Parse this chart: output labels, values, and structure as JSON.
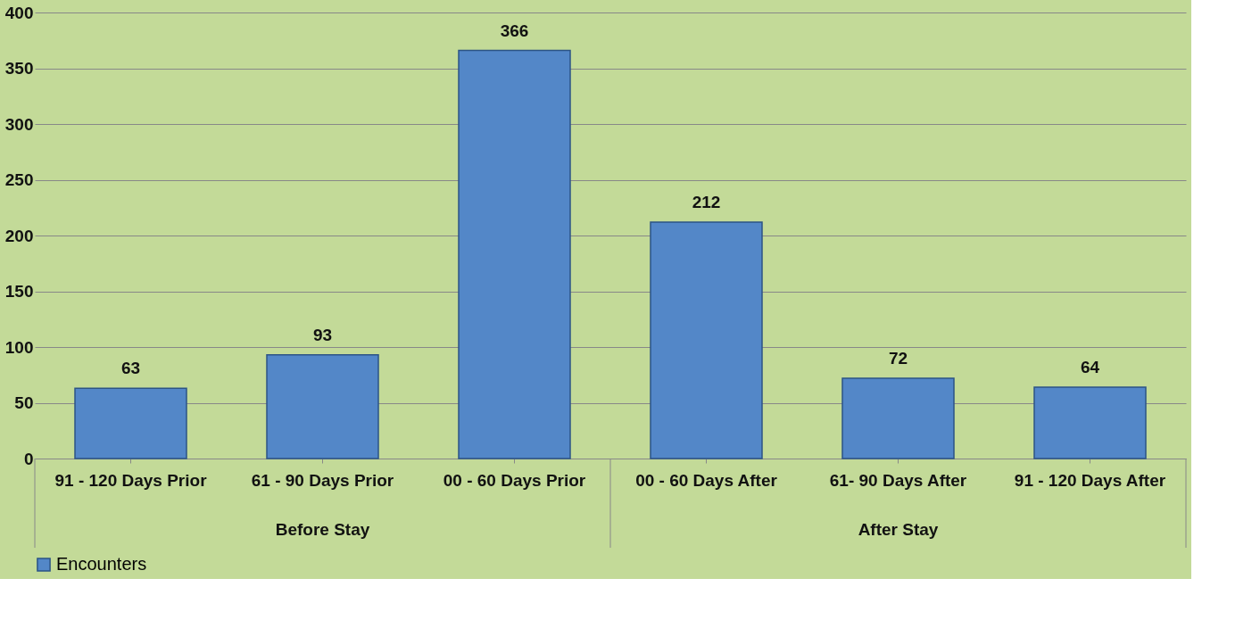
{
  "chart_data": {
    "type": "bar",
    "categories": [
      "91 - 120 Days Prior",
      "61 - 90 Days Prior",
      "00 - 60 Days Prior",
      "00 - 60 Days After",
      "61- 90 Days After",
      "91 - 120 Days After"
    ],
    "series": [
      {
        "name": "Encounters",
        "color": "#5387c8",
        "values": [
          63,
          93,
          366,
          212,
          72,
          64
        ]
      }
    ],
    "ylim": [
      0,
      400
    ],
    "yticks": [
      0,
      50,
      100,
      150,
      200,
      250,
      300,
      350,
      400
    ],
    "grid": "y",
    "data_labels": true,
    "legend": "bottom",
    "annotations": [
      "Before Stay",
      "After Stay"
    ]
  }
}
